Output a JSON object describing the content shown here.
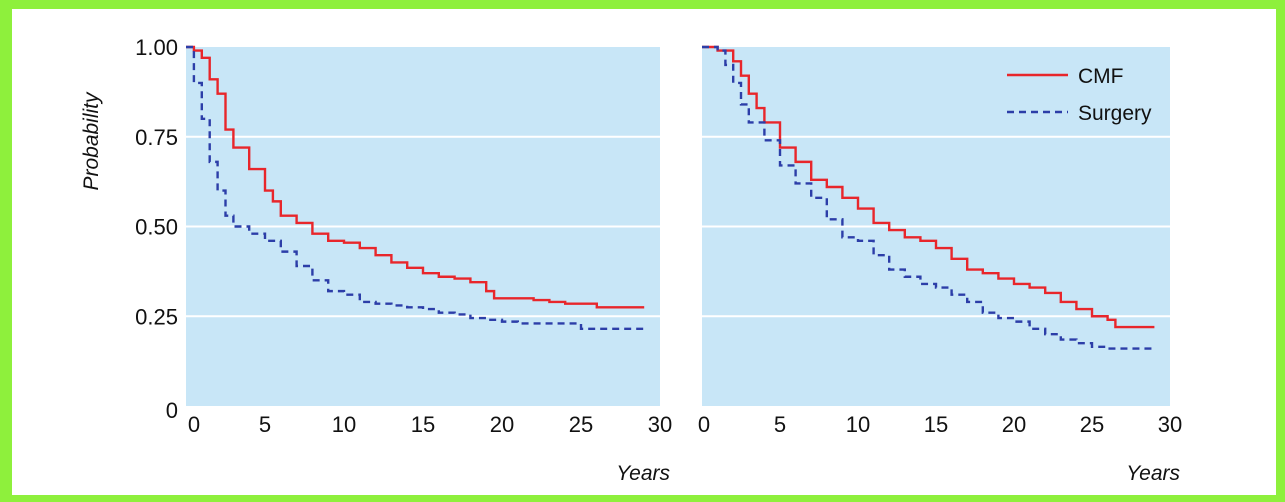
{
  "chart_data": [
    {
      "type": "line",
      "xlabel": "Years",
      "ylabel": "Probability",
      "xlim": [
        0,
        30
      ],
      "ylim": [
        0,
        1
      ],
      "xticks": [
        "0",
        "5",
        "10",
        "15",
        "20",
        "25",
        "30"
      ],
      "yticks": [
        "0",
        "0.25",
        "0.50",
        "0.75",
        "1.00"
      ],
      "grid": "horizontal",
      "series": [
        {
          "name": "CMF",
          "color": "#e8262b",
          "dash": "solid",
          "points": [
            [
              0,
              1.0
            ],
            [
              0.5,
              0.99
            ],
            [
              1,
              0.97
            ],
            [
              1.5,
              0.91
            ],
            [
              2,
              0.87
            ],
            [
              2.5,
              0.77
            ],
            [
              3,
              0.72
            ],
            [
              4,
              0.66
            ],
            [
              5,
              0.6
            ],
            [
              5.5,
              0.57
            ],
            [
              6,
              0.53
            ],
            [
              7,
              0.51
            ],
            [
              8,
              0.48
            ],
            [
              9,
              0.46
            ],
            [
              10,
              0.455
            ],
            [
              11,
              0.44
            ],
            [
              12,
              0.42
            ],
            [
              13,
              0.4
            ],
            [
              14,
              0.385
            ],
            [
              15,
              0.37
            ],
            [
              16,
              0.36
            ],
            [
              17,
              0.355
            ],
            [
              18,
              0.345
            ],
            [
              19,
              0.32
            ],
            [
              19.5,
              0.3
            ],
            [
              21,
              0.3
            ],
            [
              22,
              0.295
            ],
            [
              23,
              0.29
            ],
            [
              24,
              0.285
            ],
            [
              25,
              0.285
            ],
            [
              26,
              0.275
            ],
            [
              29,
              0.275
            ]
          ]
        },
        {
          "name": "Surgery",
          "color": "#2c3ea8",
          "dash": "dashed",
          "points": [
            [
              0,
              1.0
            ],
            [
              0.5,
              0.9
            ],
            [
              1,
              0.8
            ],
            [
              1.5,
              0.68
            ],
            [
              2,
              0.6
            ],
            [
              2.5,
              0.53
            ],
            [
              3,
              0.5
            ],
            [
              4,
              0.48
            ],
            [
              5,
              0.46
            ],
            [
              6,
              0.43
            ],
            [
              7,
              0.39
            ],
            [
              8,
              0.35
            ],
            [
              9,
              0.32
            ],
            [
              10,
              0.31
            ],
            [
              11,
              0.29
            ],
            [
              12,
              0.285
            ],
            [
              13,
              0.28
            ],
            [
              14,
              0.275
            ],
            [
              15,
              0.27
            ],
            [
              16,
              0.26
            ],
            [
              17,
              0.255
            ],
            [
              18,
              0.245
            ],
            [
              19,
              0.24
            ],
            [
              20,
              0.235
            ],
            [
              21,
              0.23
            ],
            [
              24,
              0.23
            ],
            [
              25,
              0.215
            ],
            [
              29,
              0.215
            ]
          ]
        }
      ]
    },
    {
      "type": "line",
      "xlabel": "Years",
      "ylabel": "",
      "xlim": [
        0,
        30
      ],
      "ylim": [
        0,
        1
      ],
      "xticks": [
        "0",
        "5",
        "10",
        "15",
        "20",
        "25",
        "30"
      ],
      "grid": "horizontal",
      "legend": "top-right",
      "series": [
        {
          "name": "CMF",
          "color": "#e8262b",
          "dash": "solid",
          "points": [
            [
              0,
              1.0
            ],
            [
              1,
              0.99
            ],
            [
              2,
              0.96
            ],
            [
              2.5,
              0.92
            ],
            [
              3,
              0.87
            ],
            [
              3.5,
              0.83
            ],
            [
              4,
              0.79
            ],
            [
              5,
              0.72
            ],
            [
              6,
              0.68
            ],
            [
              7,
              0.63
            ],
            [
              8,
              0.61
            ],
            [
              9,
              0.58
            ],
            [
              10,
              0.55
            ],
            [
              11,
              0.51
            ],
            [
              12,
              0.49
            ],
            [
              13,
              0.47
            ],
            [
              14,
              0.46
            ],
            [
              15,
              0.44
            ],
            [
              16,
              0.41
            ],
            [
              17,
              0.38
            ],
            [
              18,
              0.37
            ],
            [
              19,
              0.355
            ],
            [
              20,
              0.34
            ],
            [
              21,
              0.33
            ],
            [
              22,
              0.315
            ],
            [
              23,
              0.29
            ],
            [
              24,
              0.27
            ],
            [
              25,
              0.25
            ],
            [
              26,
              0.24
            ],
            [
              26.5,
              0.22
            ],
            [
              29,
              0.22
            ]
          ]
        },
        {
          "name": "Surgery",
          "color": "#2c3ea8",
          "dash": "dashed",
          "points": [
            [
              0,
              1.0
            ],
            [
              1,
              0.99
            ],
            [
              1.5,
              0.95
            ],
            [
              2,
              0.9
            ],
            [
              2.5,
              0.84
            ],
            [
              3,
              0.79
            ],
            [
              4,
              0.74
            ],
            [
              5,
              0.67
            ],
            [
              6,
              0.62
            ],
            [
              7,
              0.58
            ],
            [
              8,
              0.52
            ],
            [
              9,
              0.47
            ],
            [
              10,
              0.46
            ],
            [
              11,
              0.42
            ],
            [
              12,
              0.38
            ],
            [
              13,
              0.36
            ],
            [
              14,
              0.34
            ],
            [
              15,
              0.33
            ],
            [
              16,
              0.31
            ],
            [
              17,
              0.29
            ],
            [
              18,
              0.26
            ],
            [
              19,
              0.245
            ],
            [
              20,
              0.235
            ],
            [
              21,
              0.215
            ],
            [
              22,
              0.2
            ],
            [
              23,
              0.185
            ],
            [
              24,
              0.175
            ],
            [
              25,
              0.165
            ],
            [
              26,
              0.16
            ],
            [
              29,
              0.16
            ]
          ]
        }
      ]
    }
  ],
  "colors": {
    "plot_background": "#c8e6f7",
    "gridline": "#ffffff",
    "frame_border": "#8ef03c"
  }
}
